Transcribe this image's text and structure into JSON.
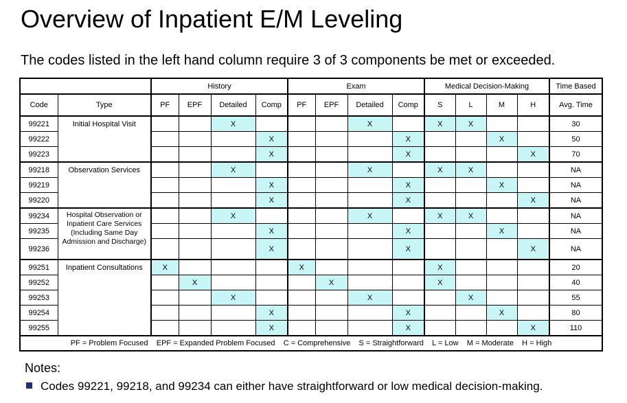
{
  "title": "Overview of Inpatient E/M Leveling",
  "subtitle": "The codes listed in the left hand column require 3 of 3 components be met or exceeded.",
  "table": {
    "groups": [
      "History",
      "Exam",
      "Medical Decision-Making",
      "Time Based"
    ],
    "headers": [
      "Code",
      "Type",
      "PF",
      "EPF",
      "Detailed",
      "Comp",
      "PF",
      "EPF",
      "Detailed",
      "Comp",
      "S",
      "L",
      "M",
      "H",
      "Avg. Time"
    ],
    "type_labels": {
      "initial": "Initial Hospital Visit",
      "observation": "Observation Services",
      "hospital_obs": "Hospital Observation or Inpatient Care Services (Including Same Day Admission and Discharge)",
      "consult": "Inpatient Consultations"
    },
    "mark": "X",
    "rows": [
      {
        "code": "99221",
        "cells": [
          "",
          "",
          "X",
          "",
          "",
          "",
          "X",
          "",
          "X",
          "X",
          "",
          ""
        ],
        "time": "30"
      },
      {
        "code": "99222",
        "cells": [
          "",
          "",
          "",
          "X",
          "",
          "",
          "",
          "X",
          "",
          "",
          "X",
          ""
        ],
        "time": "50"
      },
      {
        "code": "99223",
        "cells": [
          "",
          "",
          "",
          "X",
          "",
          "",
          "",
          "X",
          "",
          "",
          "",
          "X"
        ],
        "time": "70"
      },
      {
        "code": "99218",
        "cells": [
          "",
          "",
          "X",
          "",
          "",
          "",
          "X",
          "",
          "X",
          "X",
          "",
          ""
        ],
        "time": "NA"
      },
      {
        "code": "99219",
        "cells": [
          "",
          "",
          "",
          "X",
          "",
          "",
          "",
          "X",
          "",
          "",
          "X",
          ""
        ],
        "time": "NA"
      },
      {
        "code": "99220",
        "cells": [
          "",
          "",
          "",
          "X",
          "",
          "",
          "",
          "X",
          "",
          "",
          "",
          "X"
        ],
        "time": "NA"
      },
      {
        "code": "99234",
        "cells": [
          "",
          "",
          "X",
          "",
          "",
          "",
          "X",
          "",
          "X",
          "X",
          "",
          ""
        ],
        "time": "NA"
      },
      {
        "code": "99235",
        "cells": [
          "",
          "",
          "",
          "X",
          "",
          "",
          "",
          "X",
          "",
          "",
          "X",
          ""
        ],
        "time": "NA"
      },
      {
        "code": "99236",
        "cells": [
          "",
          "",
          "",
          "X",
          "",
          "",
          "",
          "X",
          "",
          "",
          "",
          "X"
        ],
        "time": "NA"
      },
      {
        "code": "99251",
        "cells": [
          "X",
          "",
          "",
          "",
          "X",
          "",
          "",
          "",
          "X",
          "",
          "",
          ""
        ],
        "time": "20"
      },
      {
        "code": "99252",
        "cells": [
          "",
          "X",
          "",
          "",
          "",
          "X",
          "",
          "",
          "X",
          "",
          "",
          ""
        ],
        "time": "40"
      },
      {
        "code": "99253",
        "cells": [
          "",
          "",
          "X",
          "",
          "",
          "",
          "X",
          "",
          "",
          "X",
          "",
          ""
        ],
        "time": "55"
      },
      {
        "code": "99254",
        "cells": [
          "",
          "",
          "",
          "X",
          "",
          "",
          "",
          "X",
          "",
          "",
          "X",
          ""
        ],
        "time": "80"
      },
      {
        "code": "99255",
        "cells": [
          "",
          "",
          "",
          "X",
          "",
          "",
          "",
          "X",
          "",
          "",
          "",
          "X"
        ],
        "time": "110"
      }
    ],
    "legend": "PF = Problem Focused    EPF = Expanded Problem Focused    C = Comprehensive    S = Straightforward    L = Low    M = Moderate    H = High",
    "highlight_color": "#c8f5f5"
  },
  "notes": {
    "heading": "Notes:",
    "items": [
      "Codes 99221, 99218, and 99234 can either have straightforward or low medical decision-making."
    ]
  }
}
